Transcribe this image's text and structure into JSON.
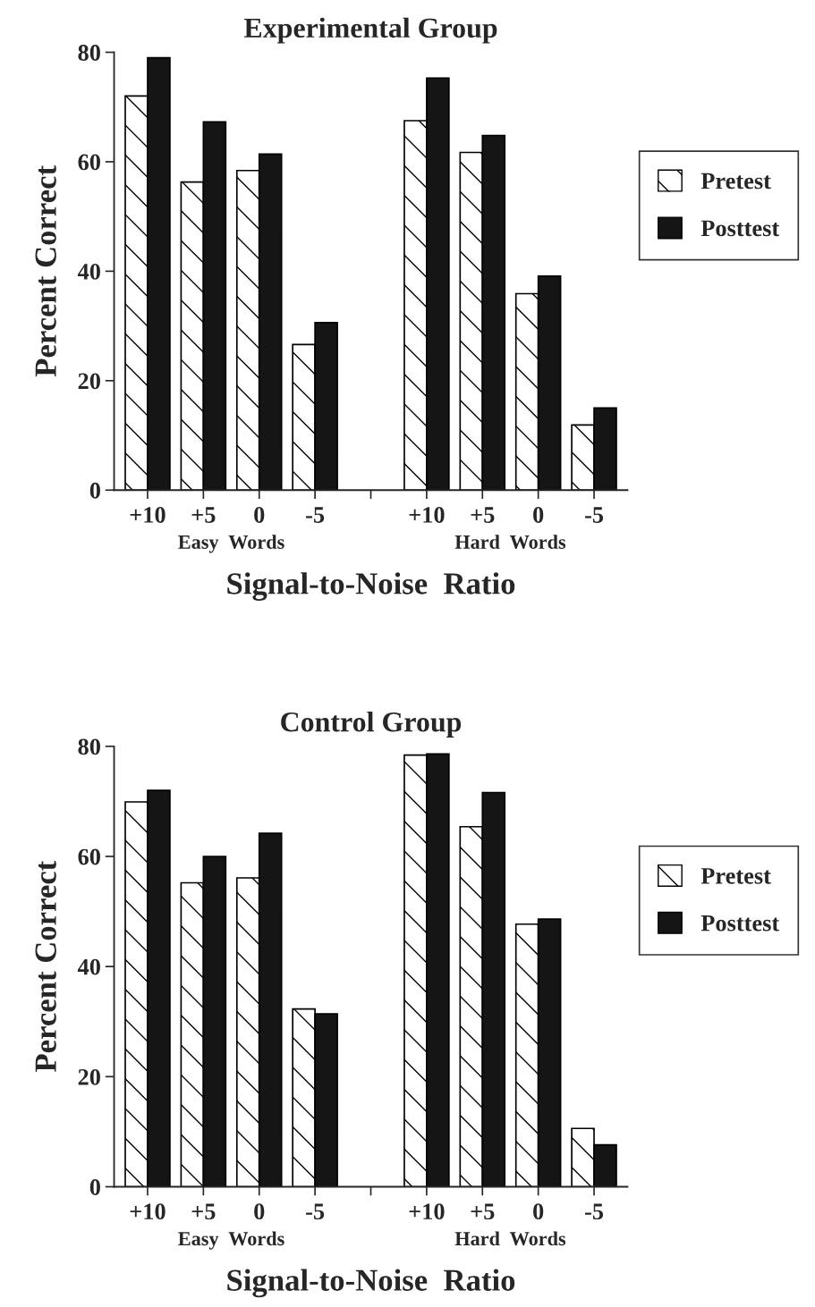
{
  "chart_data": [
    {
      "type": "bar",
      "title": "Experimental Group",
      "xlabel": "Signal-to-Noise  Ratio",
      "ylabel": "Percent Correct",
      "categories": [
        "+10",
        "+5",
        "0",
        "-5",
        null,
        "+10",
        "+5",
        "0",
        "-5"
      ],
      "series": [
        {
          "name": "Pretest",
          "color": "#ffffff",
          "values": [
            72,
            56.3,
            58.4,
            26.6,
            null,
            67.5,
            61.7,
            35.9,
            11.9
          ]
        },
        {
          "name": "Posttest",
          "color": "#151515",
          "values": [
            79,
            67.3,
            61.4,
            30.6,
            null,
            75.3,
            64.8,
            39.1,
            15.0
          ]
        }
      ],
      "annotations": [
        "Easy  Words",
        "Hard  Words"
      ],
      "ylim": [
        0,
        80
      ],
      "yticks": [
        0,
        20,
        40,
        60,
        80
      ],
      "legend": "right",
      "grid": false
    },
    {
      "type": "bar",
      "title": "Control Group",
      "xlabel": "Signal-to-Noise  Ratio",
      "ylabel": "Percent Correct",
      "categories": [
        "+10",
        "+5",
        "0",
        "-5",
        null,
        "+10",
        "+5",
        "0",
        "-5"
      ],
      "series": [
        {
          "name": "Pretest",
          "color": "#ffffff",
          "values": [
            69.9,
            55.2,
            56.1,
            32.3,
            null,
            78.4,
            65.4,
            47.7,
            10.6
          ]
        },
        {
          "name": "Posttest",
          "color": "#151515",
          "values": [
            72.0,
            60.0,
            64.2,
            31.4,
            null,
            78.6,
            71.6,
            48.6,
            7.6
          ]
        }
      ],
      "annotations": [
        "Easy  Words",
        "Hard  Words"
      ],
      "ylim": [
        0,
        80
      ],
      "yticks": [
        0,
        20,
        40,
        60,
        80
      ],
      "legend": "right",
      "grid": false
    }
  ]
}
